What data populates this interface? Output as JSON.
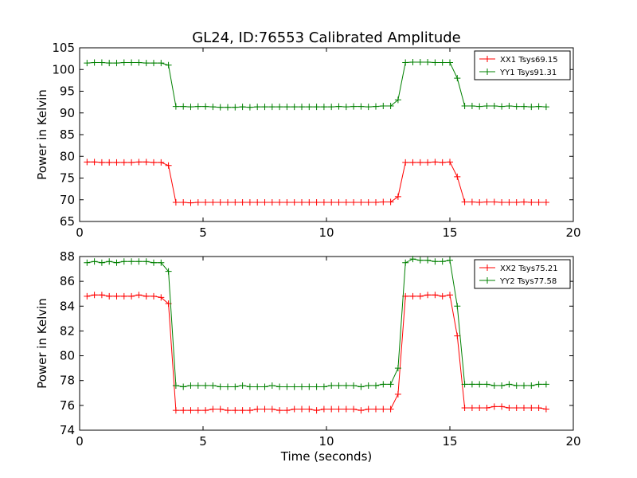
{
  "title": "GL24, ID:76553 Calibrated Amplitude",
  "chart_data": [
    {
      "type": "line",
      "title": "GL24, ID:76553 Calibrated Amplitude",
      "xlabel": "",
      "ylabel": "Power in Kelvin",
      "xlim": [
        0,
        20
      ],
      "ylim": [
        65,
        105
      ],
      "xticks": [
        0,
        5,
        10,
        15,
        20
      ],
      "yticks": [
        65,
        70,
        75,
        80,
        85,
        90,
        95,
        100,
        105
      ],
      "grid": false,
      "legend_position": "top-right",
      "x": [
        0.3,
        0.6,
        0.9,
        1.2,
        1.5,
        1.8,
        2.1,
        2.4,
        2.7,
        3.0,
        3.3,
        3.6,
        3.9,
        4.2,
        4.5,
        4.8,
        5.1,
        5.4,
        5.7,
        6.0,
        6.3,
        6.6,
        6.9,
        7.2,
        7.5,
        7.8,
        8.1,
        8.4,
        8.7,
        9.0,
        9.3,
        9.6,
        9.9,
        10.2,
        10.5,
        10.8,
        11.1,
        11.4,
        11.7,
        12.0,
        12.3,
        12.6,
        12.9,
        13.2,
        13.5,
        13.8,
        14.1,
        14.4,
        14.7,
        15.0,
        15.3,
        15.6,
        15.9,
        16.2,
        16.5,
        16.8,
        17.1,
        17.4,
        17.7,
        18.0,
        18.3,
        18.6,
        18.9
      ],
      "series": [
        {
          "name": "XX1 Tsys69.15",
          "color": "#ff0000",
          "values": [
            78.7,
            78.7,
            78.6,
            78.6,
            78.6,
            78.6,
            78.6,
            78.7,
            78.7,
            78.6,
            78.6,
            77.9,
            69.4,
            69.4,
            69.3,
            69.4,
            69.4,
            69.4,
            69.4,
            69.4,
            69.4,
            69.4,
            69.4,
            69.4,
            69.4,
            69.4,
            69.4,
            69.4,
            69.4,
            69.4,
            69.4,
            69.4,
            69.4,
            69.4,
            69.4,
            69.4,
            69.4,
            69.4,
            69.4,
            69.4,
            69.5,
            69.5,
            70.7,
            78.6,
            78.6,
            78.6,
            78.6,
            78.7,
            78.6,
            78.7,
            75.3,
            69.5,
            69.5,
            69.4,
            69.5,
            69.5,
            69.4,
            69.4,
            69.4,
            69.5,
            69.4,
            69.4,
            69.4
          ]
        },
        {
          "name": "YY1 Tsys91.31",
          "color": "#008000",
          "values": [
            101.5,
            101.6,
            101.6,
            101.5,
            101.5,
            101.6,
            101.6,
            101.6,
            101.5,
            101.5,
            101.5,
            101.0,
            91.5,
            91.5,
            91.4,
            91.5,
            91.5,
            91.4,
            91.3,
            91.3,
            91.3,
            91.4,
            91.3,
            91.4,
            91.4,
            91.4,
            91.4,
            91.4,
            91.4,
            91.4,
            91.4,
            91.4,
            91.4,
            91.4,
            91.5,
            91.4,
            91.5,
            91.5,
            91.4,
            91.5,
            91.6,
            91.6,
            93.0,
            101.6,
            101.7,
            101.7,
            101.7,
            101.6,
            101.6,
            101.6,
            98.0,
            91.6,
            91.6,
            91.5,
            91.6,
            91.6,
            91.5,
            91.6,
            91.5,
            91.5,
            91.4,
            91.5,
            91.4
          ]
        }
      ]
    },
    {
      "type": "line",
      "title": "",
      "xlabel": "Time (seconds)",
      "ylabel": "Power in Kelvin",
      "xlim": [
        0,
        20
      ],
      "ylim": [
        74,
        88
      ],
      "xticks": [
        0,
        5,
        10,
        15,
        20
      ],
      "yticks": [
        74,
        76,
        78,
        80,
        82,
        84,
        86,
        88
      ],
      "grid": false,
      "legend_position": "top-right",
      "x": [
        0.3,
        0.6,
        0.9,
        1.2,
        1.5,
        1.8,
        2.1,
        2.4,
        2.7,
        3.0,
        3.3,
        3.6,
        3.9,
        4.2,
        4.5,
        4.8,
        5.1,
        5.4,
        5.7,
        6.0,
        6.3,
        6.6,
        6.9,
        7.2,
        7.5,
        7.8,
        8.1,
        8.4,
        8.7,
        9.0,
        9.3,
        9.6,
        9.9,
        10.2,
        10.5,
        10.8,
        11.1,
        11.4,
        11.7,
        12.0,
        12.3,
        12.6,
        12.9,
        13.2,
        13.5,
        13.8,
        14.1,
        14.4,
        14.7,
        15.0,
        15.3,
        15.6,
        15.9,
        16.2,
        16.5,
        16.8,
        17.1,
        17.4,
        17.7,
        18.0,
        18.3,
        18.6,
        18.9
      ],
      "series": [
        {
          "name": "XX2 Tsys75.21",
          "color": "#ff0000",
          "values": [
            84.8,
            84.9,
            84.9,
            84.8,
            84.8,
            84.8,
            84.8,
            84.9,
            84.8,
            84.8,
            84.7,
            84.2,
            75.6,
            75.6,
            75.6,
            75.6,
            75.6,
            75.7,
            75.7,
            75.6,
            75.6,
            75.6,
            75.6,
            75.7,
            75.7,
            75.7,
            75.6,
            75.6,
            75.7,
            75.7,
            75.7,
            75.6,
            75.7,
            75.7,
            75.7,
            75.7,
            75.7,
            75.6,
            75.7,
            75.7,
            75.7,
            75.7,
            76.9,
            84.8,
            84.8,
            84.8,
            84.9,
            84.9,
            84.8,
            84.9,
            81.6,
            75.8,
            75.8,
            75.8,
            75.8,
            75.9,
            75.9,
            75.8,
            75.8,
            75.8,
            75.8,
            75.8,
            75.7
          ]
        },
        {
          "name": "YY2 Tsys77.58",
          "color": "#008000",
          "values": [
            87.5,
            87.6,
            87.5,
            87.6,
            87.5,
            87.6,
            87.6,
            87.6,
            87.6,
            87.5,
            87.5,
            86.8,
            77.6,
            77.5,
            77.6,
            77.6,
            77.6,
            77.6,
            77.5,
            77.5,
            77.5,
            77.6,
            77.5,
            77.5,
            77.5,
            77.6,
            77.5,
            77.5,
            77.5,
            77.5,
            77.5,
            77.5,
            77.5,
            77.6,
            77.6,
            77.6,
            77.6,
            77.5,
            77.6,
            77.6,
            77.7,
            77.7,
            79.0,
            87.5,
            87.8,
            87.7,
            87.7,
            87.6,
            87.6,
            87.7,
            84.0,
            77.7,
            77.7,
            77.7,
            77.7,
            77.6,
            77.6,
            77.7,
            77.6,
            77.6,
            77.6,
            77.7,
            77.7
          ]
        }
      ]
    }
  ]
}
